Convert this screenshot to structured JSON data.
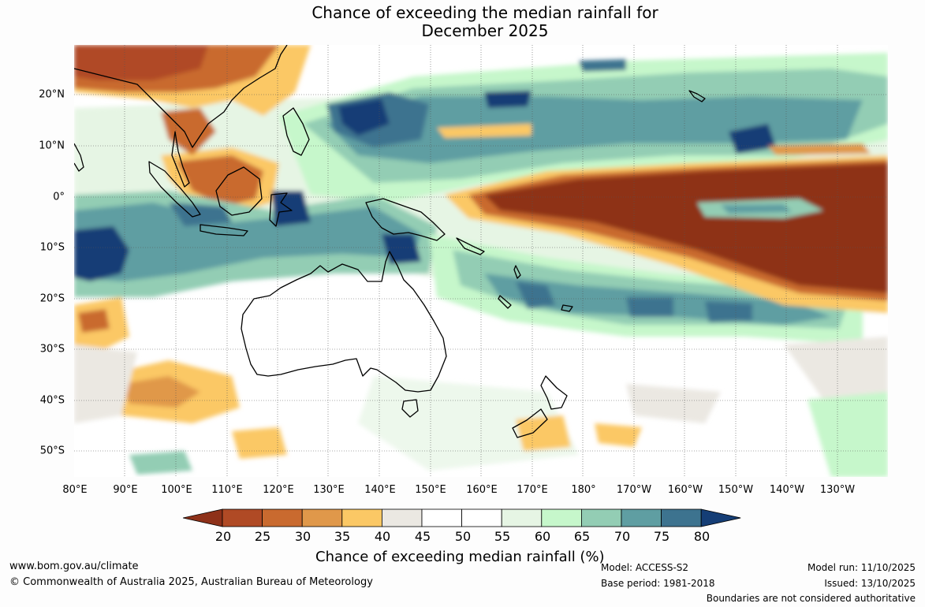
{
  "title_line1": "Chance of exceeding the median rainfall for",
  "title_line2": "December 2025",
  "map": {
    "lon_labels": [
      "80°E",
      "90°E",
      "100°E",
      "110°E",
      "120°E",
      "130°E",
      "140°E",
      "150°E",
      "160°E",
      "170°E",
      "180°",
      "170°W",
      "160°W",
      "150°W",
      "140°W",
      "130°W"
    ],
    "lat_labels": [
      "20°N",
      "10°N",
      "0°",
      "10°S",
      "20°S",
      "30°S",
      "40°S",
      "50°S"
    ],
    "lon_range": [
      80,
      235
    ],
    "lat_range": [
      -55,
      30
    ]
  },
  "colorbar": {
    "ticks": [
      "20",
      "25",
      "30",
      "35",
      "40",
      "45",
      "50",
      "55",
      "60",
      "65",
      "70",
      "75",
      "80"
    ],
    "colors": [
      "#8e3119",
      "#b04a25",
      "#c96a2f",
      "#e0984a",
      "#fbc865",
      "#ebe8e2",
      "#ffffff",
      "#ffffff",
      "#e6f5e4",
      "#c6f7cb",
      "#93cdb4",
      "#5f9ea2",
      "#3d738f",
      "#153e76"
    ],
    "label": "Chance of exceeding median rainfall (%)"
  },
  "footer": {
    "website": "www.bom.gov.au/climate",
    "copyright": "© Commonwealth of Australia 2025, Australian Bureau of Meteorology",
    "model": "Model: ACCESS-S2",
    "base_period": "Base period: 1981-2018",
    "model_run": "Model run: 11/10/2025",
    "issued": "Issued: 13/10/2025",
    "disclaimer": "Boundaries are not considered authoritative"
  }
}
